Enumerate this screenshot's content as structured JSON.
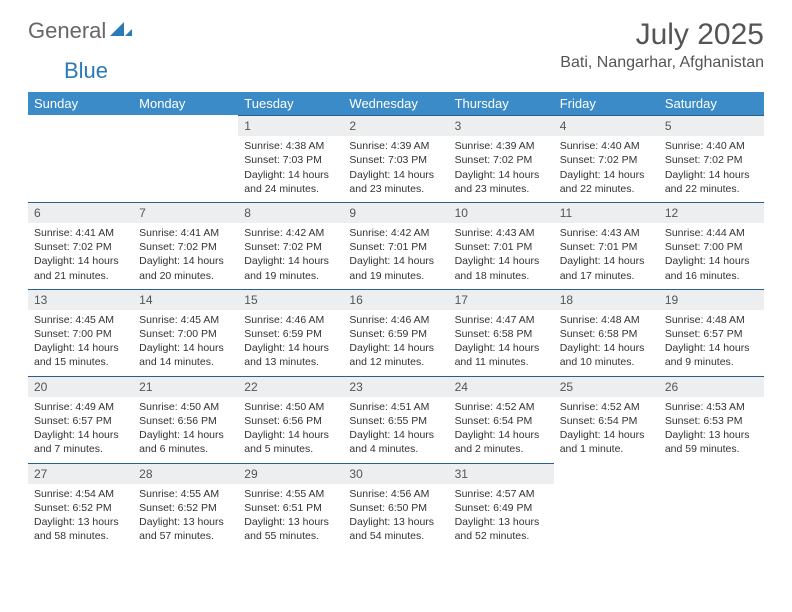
{
  "brand": {
    "part1": "General",
    "part2": "Blue"
  },
  "title": "July 2025",
  "location": "Bati, Nangarhar, Afghanistan",
  "colors": {
    "header_bg": "#3b8bc9",
    "header_text": "#ffffff",
    "daynum_bg": "#eceeef",
    "daynum_border": "#2b5f8a",
    "body_text": "#333333",
    "title_text": "#555555"
  },
  "weekdays": [
    "Sunday",
    "Monday",
    "Tuesday",
    "Wednesday",
    "Thursday",
    "Friday",
    "Saturday"
  ],
  "weeks": [
    [
      null,
      null,
      {
        "n": "1",
        "sr": "Sunrise: 4:38 AM",
        "ss": "Sunset: 7:03 PM",
        "dl": "Daylight: 14 hours and 24 minutes."
      },
      {
        "n": "2",
        "sr": "Sunrise: 4:39 AM",
        "ss": "Sunset: 7:03 PM",
        "dl": "Daylight: 14 hours and 23 minutes."
      },
      {
        "n": "3",
        "sr": "Sunrise: 4:39 AM",
        "ss": "Sunset: 7:02 PM",
        "dl": "Daylight: 14 hours and 23 minutes."
      },
      {
        "n": "4",
        "sr": "Sunrise: 4:40 AM",
        "ss": "Sunset: 7:02 PM",
        "dl": "Daylight: 14 hours and 22 minutes."
      },
      {
        "n": "5",
        "sr": "Sunrise: 4:40 AM",
        "ss": "Sunset: 7:02 PM",
        "dl": "Daylight: 14 hours and 22 minutes."
      }
    ],
    [
      {
        "n": "6",
        "sr": "Sunrise: 4:41 AM",
        "ss": "Sunset: 7:02 PM",
        "dl": "Daylight: 14 hours and 21 minutes."
      },
      {
        "n": "7",
        "sr": "Sunrise: 4:41 AM",
        "ss": "Sunset: 7:02 PM",
        "dl": "Daylight: 14 hours and 20 minutes."
      },
      {
        "n": "8",
        "sr": "Sunrise: 4:42 AM",
        "ss": "Sunset: 7:02 PM",
        "dl": "Daylight: 14 hours and 19 minutes."
      },
      {
        "n": "9",
        "sr": "Sunrise: 4:42 AM",
        "ss": "Sunset: 7:01 PM",
        "dl": "Daylight: 14 hours and 19 minutes."
      },
      {
        "n": "10",
        "sr": "Sunrise: 4:43 AM",
        "ss": "Sunset: 7:01 PM",
        "dl": "Daylight: 14 hours and 18 minutes."
      },
      {
        "n": "11",
        "sr": "Sunrise: 4:43 AM",
        "ss": "Sunset: 7:01 PM",
        "dl": "Daylight: 14 hours and 17 minutes."
      },
      {
        "n": "12",
        "sr": "Sunrise: 4:44 AM",
        "ss": "Sunset: 7:00 PM",
        "dl": "Daylight: 14 hours and 16 minutes."
      }
    ],
    [
      {
        "n": "13",
        "sr": "Sunrise: 4:45 AM",
        "ss": "Sunset: 7:00 PM",
        "dl": "Daylight: 14 hours and 15 minutes."
      },
      {
        "n": "14",
        "sr": "Sunrise: 4:45 AM",
        "ss": "Sunset: 7:00 PM",
        "dl": "Daylight: 14 hours and 14 minutes."
      },
      {
        "n": "15",
        "sr": "Sunrise: 4:46 AM",
        "ss": "Sunset: 6:59 PM",
        "dl": "Daylight: 14 hours and 13 minutes."
      },
      {
        "n": "16",
        "sr": "Sunrise: 4:46 AM",
        "ss": "Sunset: 6:59 PM",
        "dl": "Daylight: 14 hours and 12 minutes."
      },
      {
        "n": "17",
        "sr": "Sunrise: 4:47 AM",
        "ss": "Sunset: 6:58 PM",
        "dl": "Daylight: 14 hours and 11 minutes."
      },
      {
        "n": "18",
        "sr": "Sunrise: 4:48 AM",
        "ss": "Sunset: 6:58 PM",
        "dl": "Daylight: 14 hours and 10 minutes."
      },
      {
        "n": "19",
        "sr": "Sunrise: 4:48 AM",
        "ss": "Sunset: 6:57 PM",
        "dl": "Daylight: 14 hours and 9 minutes."
      }
    ],
    [
      {
        "n": "20",
        "sr": "Sunrise: 4:49 AM",
        "ss": "Sunset: 6:57 PM",
        "dl": "Daylight: 14 hours and 7 minutes."
      },
      {
        "n": "21",
        "sr": "Sunrise: 4:50 AM",
        "ss": "Sunset: 6:56 PM",
        "dl": "Daylight: 14 hours and 6 minutes."
      },
      {
        "n": "22",
        "sr": "Sunrise: 4:50 AM",
        "ss": "Sunset: 6:56 PM",
        "dl": "Daylight: 14 hours and 5 minutes."
      },
      {
        "n": "23",
        "sr": "Sunrise: 4:51 AM",
        "ss": "Sunset: 6:55 PM",
        "dl": "Daylight: 14 hours and 4 minutes."
      },
      {
        "n": "24",
        "sr": "Sunrise: 4:52 AM",
        "ss": "Sunset: 6:54 PM",
        "dl": "Daylight: 14 hours and 2 minutes."
      },
      {
        "n": "25",
        "sr": "Sunrise: 4:52 AM",
        "ss": "Sunset: 6:54 PM",
        "dl": "Daylight: 14 hours and 1 minute."
      },
      {
        "n": "26",
        "sr": "Sunrise: 4:53 AM",
        "ss": "Sunset: 6:53 PM",
        "dl": "Daylight: 13 hours and 59 minutes."
      }
    ],
    [
      {
        "n": "27",
        "sr": "Sunrise: 4:54 AM",
        "ss": "Sunset: 6:52 PM",
        "dl": "Daylight: 13 hours and 58 minutes."
      },
      {
        "n": "28",
        "sr": "Sunrise: 4:55 AM",
        "ss": "Sunset: 6:52 PM",
        "dl": "Daylight: 13 hours and 57 minutes."
      },
      {
        "n": "29",
        "sr": "Sunrise: 4:55 AM",
        "ss": "Sunset: 6:51 PM",
        "dl": "Daylight: 13 hours and 55 minutes."
      },
      {
        "n": "30",
        "sr": "Sunrise: 4:56 AM",
        "ss": "Sunset: 6:50 PM",
        "dl": "Daylight: 13 hours and 54 minutes."
      },
      {
        "n": "31",
        "sr": "Sunrise: 4:57 AM",
        "ss": "Sunset: 6:49 PM",
        "dl": "Daylight: 13 hours and 52 minutes."
      },
      null,
      null
    ]
  ]
}
